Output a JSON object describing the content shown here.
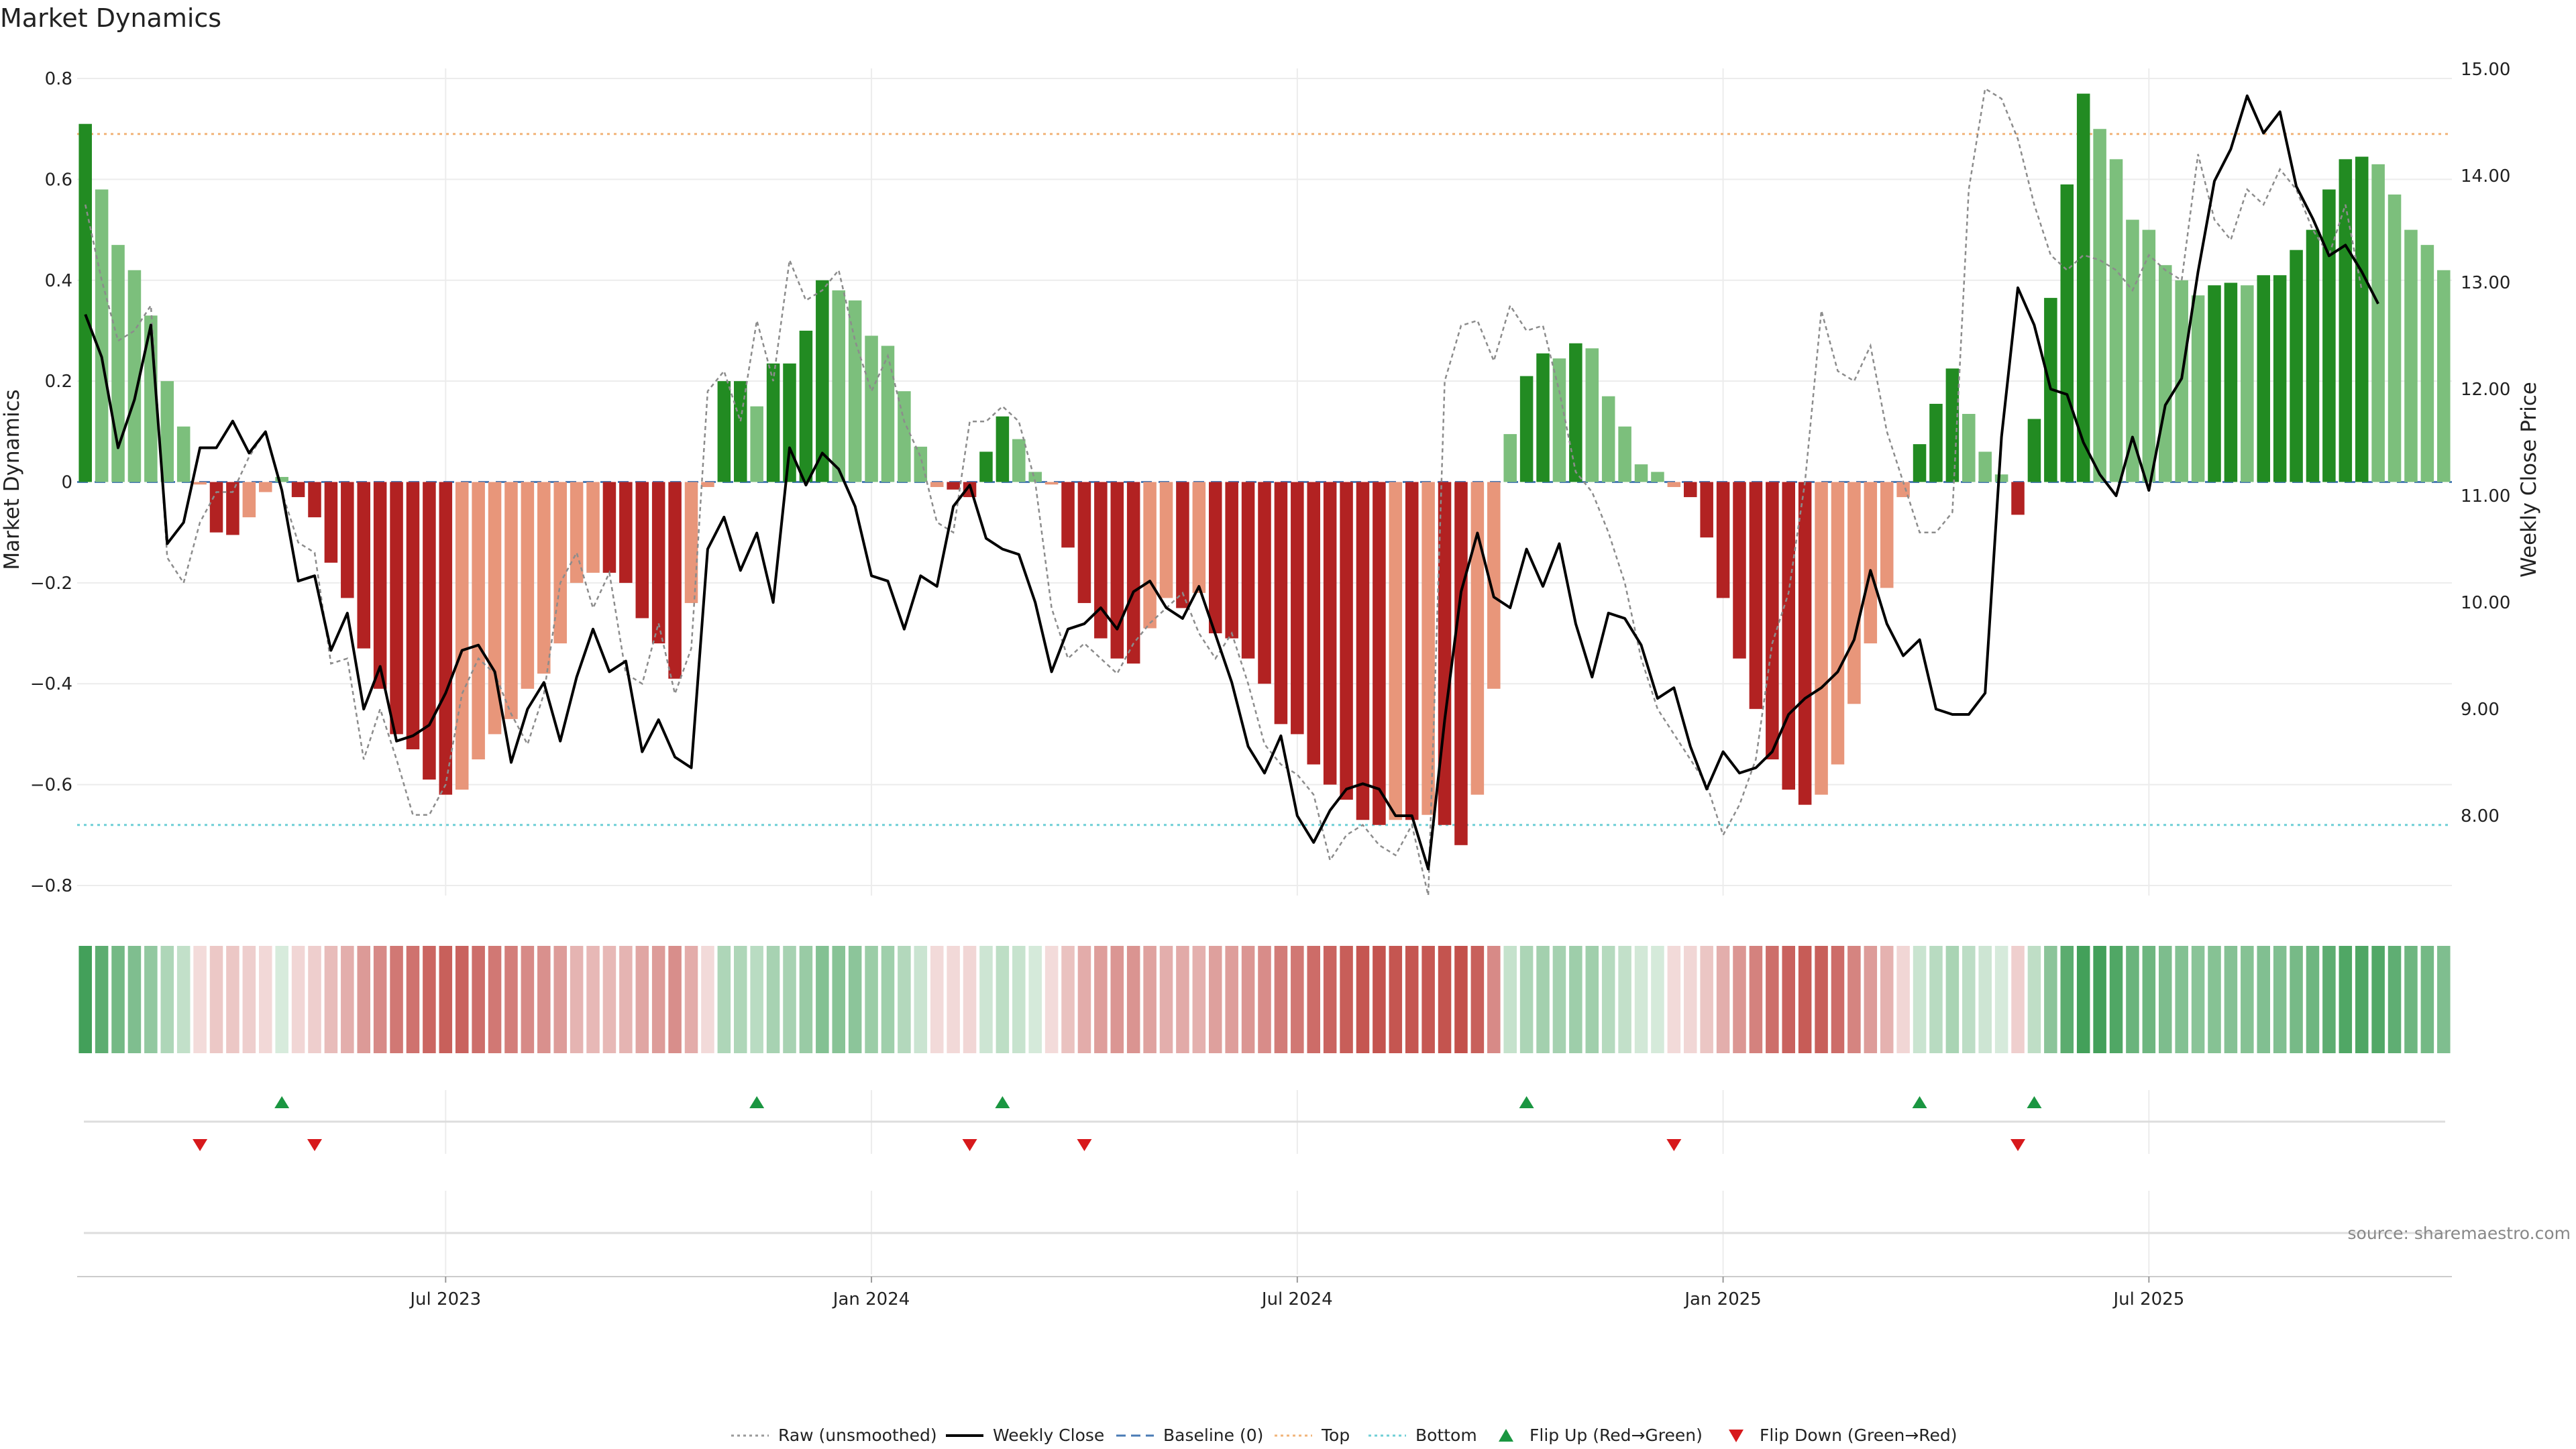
{
  "chart_data": {
    "type": "bar",
    "title": "Market Dynamics",
    "ylabel_left": "Market Dynamics",
    "ylabel_right": "Weekly Close Price",
    "ylim_left": [
      -0.82,
      0.82
    ],
    "ylim_right": [
      7.15,
      15.15
    ],
    "left_ticks": [
      "0.8",
      "0.6",
      "0.4",
      "0.2",
      "0",
      "−0.2",
      "−0.4",
      "−0.6",
      "−0.8"
    ],
    "left_tick_values": [
      0.8,
      0.6,
      0.4,
      0.2,
      0,
      -0.2,
      -0.4,
      -0.6,
      -0.8
    ],
    "right_ticks": [
      "15.00",
      "14.00",
      "13.00",
      "12.00",
      "11.00",
      "10.00",
      "9.00",
      "8.00"
    ],
    "right_tick_values": [
      15,
      14,
      13,
      12,
      11,
      10,
      9,
      8
    ],
    "x_ticks": [
      "Jul 2023",
      "Jan 2024",
      "Jul 2024",
      "Jan 2025",
      "Jul 2025"
    ],
    "x_tick_weeks": [
      22,
      48,
      74,
      100,
      126
    ],
    "top_level": 0.69,
    "bottom_level": -0.68,
    "momentum": [
      0.71,
      0.58,
      0.47,
      0.42,
      0.33,
      0.2,
      0.11,
      -0.005,
      -0.1,
      -0.105,
      -0.07,
      -0.02,
      0.01,
      -0.03,
      -0.07,
      -0.16,
      -0.23,
      -0.33,
      -0.41,
      -0.5,
      -0.53,
      -0.59,
      -0.62,
      -0.61,
      -0.55,
      -0.5,
      -0.47,
      -0.41,
      -0.38,
      -0.32,
      -0.2,
      -0.18,
      -0.18,
      -0.2,
      -0.27,
      -0.32,
      -0.39,
      -0.24,
      -0.01,
      0.2,
      0.2,
      0.15,
      0.235,
      0.235,
      0.3,
      0.4,
      0.38,
      0.36,
      0.29,
      0.27,
      0.18,
      0.07,
      -0.01,
      -0.015,
      -0.03,
      0.06,
      0.13,
      0.085,
      0.02,
      -0.005,
      -0.13,
      -0.24,
      -0.31,
      -0.35,
      -0.36,
      -0.29,
      -0.23,
      -0.25,
      -0.22,
      -0.3,
      -0.31,
      -0.35,
      -0.4,
      -0.48,
      -0.5,
      -0.56,
      -0.6,
      -0.63,
      -0.67,
      -0.68,
      -0.67,
      -0.67,
      -0.66,
      -0.68,
      -0.72,
      -0.62,
      -0.41,
      0.095,
      0.21,
      0.255,
      0.245,
      0.275,
      0.265,
      0.17,
      0.11,
      0.035,
      0.02,
      -0.01,
      -0.03,
      -0.11,
      -0.23,
      -0.35,
      -0.45,
      -0.55,
      -0.61,
      -0.64,
      -0.62,
      -0.56,
      -0.44,
      -0.32,
      -0.21,
      -0.03,
      0.075,
      0.155,
      0.225,
      0.135,
      0.06,
      0.015,
      -0.065,
      0.125,
      0.365,
      0.59,
      0.77,
      0.7,
      0.64,
      0.52,
      0.5,
      0.43,
      0.4,
      0.37,
      0.39,
      0.395,
      0.39,
      0.41,
      0.41,
      0.46,
      0.5,
      0.58,
      0.64,
      0.645,
      0.63,
      0.57,
      0.5,
      0.47,
      0.42
    ],
    "weekly_close": [
      12.7,
      12.3,
      11.45,
      11.9,
      12.6,
      10.55,
      10.75,
      11.45,
      11.45,
      11.7,
      11.4,
      11.6,
      11.05,
      10.2,
      10.25,
      9.55,
      9.9,
      9.0,
      9.4,
      8.7,
      8.75,
      8.85,
      9.15,
      9.55,
      9.6,
      9.35,
      8.5,
      9.0,
      9.25,
      8.7,
      9.3,
      9.75,
      9.35,
      9.45,
      8.6,
      8.9,
      8.55,
      8.45,
      10.5,
      10.8,
      10.3,
      10.65,
      10.0,
      11.45,
      11.1,
      11.4,
      11.25,
      10.9,
      10.25,
      10.2,
      9.75,
      10.25,
      10.15,
      10.9,
      11.1,
      10.6,
      10.5,
      10.45,
      10.0,
      9.35,
      9.75,
      9.8,
      9.95,
      9.75,
      10.1,
      10.2,
      9.95,
      9.85,
      10.15,
      9.7,
      9.25,
      8.65,
      8.4,
      8.75,
      8.0,
      7.75,
      8.05,
      8.25,
      8.3,
      8.25,
      8.0,
      8.0,
      7.5,
      8.9,
      10.1,
      10.65,
      10.05,
      9.95,
      10.5,
      10.15,
      10.55,
      9.8,
      9.3,
      9.9,
      9.85,
      9.6,
      9.1,
      9.2,
      8.65,
      8.25,
      8.6,
      8.4,
      8.45,
      8.6,
      8.95,
      9.1,
      9.2,
      9.35,
      9.65,
      10.3,
      9.8,
      9.5,
      9.65,
      9.0,
      8.95,
      8.95,
      9.15,
      11.55,
      12.95,
      12.6,
      12.0,
      11.95,
      11.5,
      11.2,
      11.0,
      11.55,
      11.05,
      11.85,
      12.1,
      13.1,
      13.95,
      14.25,
      14.75,
      14.4,
      14.6,
      13.9,
      13.6,
      13.25,
      13.35,
      13.1,
      12.8
    ],
    "raw": [
      0.55,
      0.4,
      0.28,
      0.3,
      0.35,
      -0.15,
      -0.2,
      -0.08,
      -0.02,
      -0.02,
      0.05,
      0.1,
      -0.02,
      -0.12,
      -0.14,
      -0.36,
      -0.35,
      -0.55,
      -0.45,
      -0.55,
      -0.66,
      -0.66,
      -0.6,
      -0.42,
      -0.35,
      -0.38,
      -0.46,
      -0.52,
      -0.42,
      -0.2,
      -0.14,
      -0.25,
      -0.18,
      -0.38,
      -0.4,
      -0.28,
      -0.42,
      -0.33,
      0.18,
      0.22,
      0.12,
      0.32,
      0.2,
      0.44,
      0.36,
      0.38,
      0.42,
      0.28,
      0.18,
      0.25,
      0.12,
      0.05,
      -0.08,
      -0.1,
      0.12,
      0.12,
      0.15,
      0.12,
      0.0,
      -0.25,
      -0.35,
      -0.32,
      -0.35,
      -0.38,
      -0.32,
      -0.28,
      -0.25,
      -0.22,
      -0.3,
      -0.35,
      -0.3,
      -0.4,
      -0.52,
      -0.56,
      -0.58,
      -0.62,
      -0.75,
      -0.7,
      -0.68,
      -0.72,
      -0.74,
      -0.68,
      -0.82,
      0.2,
      0.31,
      0.32,
      0.24,
      0.35,
      0.3,
      0.31,
      0.18,
      0.02,
      -0.02,
      -0.1,
      -0.2,
      -0.35,
      -0.45,
      -0.5,
      -0.55,
      -0.6,
      -0.7,
      -0.64,
      -0.55,
      -0.32,
      -0.22,
      0.0,
      0.34,
      0.22,
      0.2,
      0.27,
      0.1,
      0.0,
      -0.1,
      -0.1,
      -0.06,
      0.58,
      0.78,
      0.76,
      0.68,
      0.55,
      0.45,
      0.42,
      0.45,
      0.44,
      0.42,
      0.38,
      0.45,
      0.42,
      0.4,
      0.65,
      0.52,
      0.48,
      0.58,
      0.55,
      0.62,
      0.58,
      0.5,
      0.45,
      0.55,
      0.38
    ],
    "heat_strip_note": "one cell per week, colored by momentum",
    "flip_up_weeks": [
      12,
      41,
      56,
      88,
      112,
      119
    ],
    "flip_down_weeks": [
      7,
      14,
      54,
      61,
      97,
      118
    ],
    "legend": [
      {
        "label": "Raw (unsmoothed)",
        "color": "#999999",
        "style": "dotted"
      },
      {
        "label": "Weekly Close",
        "color": "#000000",
        "style": "solid"
      },
      {
        "label": "Baseline (0)",
        "color": "#4a7bb5",
        "style": "dashed"
      },
      {
        "label": "Top",
        "color": "#f2b47a",
        "style": "dotted"
      },
      {
        "label": "Bottom",
        "color": "#6fcfd6",
        "style": "dotted"
      },
      {
        "label": "Flip Up (Red→Green)",
        "color": "#1a9641",
        "style": "triangle-up"
      },
      {
        "label": "Flip Down (Green→Red)",
        "color": "#d7191c",
        "style": "triangle-down"
      }
    ],
    "source": "source: sharemaestro.com",
    "colors": {
      "strong_green": "#228b22",
      "light_green": "#7cbf7c",
      "strong_red": "#b22222",
      "light_red": "#e8967a",
      "flip_up": "#1a9641",
      "flip_down": "#d7191c"
    }
  }
}
